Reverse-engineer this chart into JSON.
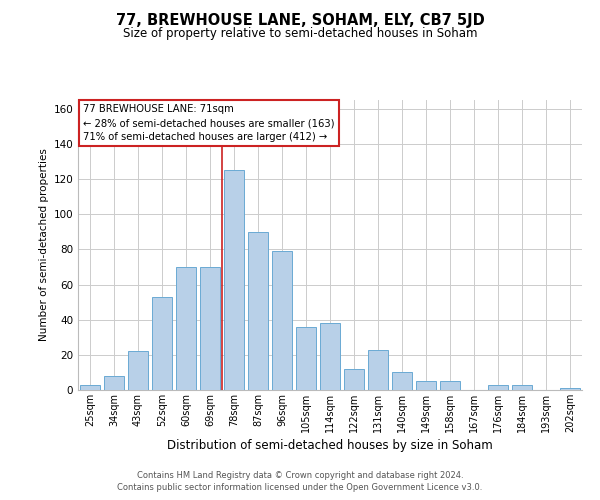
{
  "title": "77, BREWHOUSE LANE, SOHAM, ELY, CB7 5JD",
  "subtitle": "Size of property relative to semi-detached houses in Soham",
  "xlabel": "Distribution of semi-detached houses by size in Soham",
  "ylabel": "Number of semi-detached properties",
  "footer_line1": "Contains HM Land Registry data © Crown copyright and database right 2024.",
  "footer_line2": "Contains public sector information licensed under the Open Government Licence v3.0.",
  "bar_labels": [
    "25sqm",
    "34sqm",
    "43sqm",
    "52sqm",
    "60sqm",
    "69sqm",
    "78sqm",
    "87sqm",
    "96sqm",
    "105sqm",
    "114sqm",
    "122sqm",
    "131sqm",
    "140sqm",
    "149sqm",
    "158sqm",
    "167sqm",
    "176sqm",
    "184sqm",
    "193sqm",
    "202sqm"
  ],
  "bar_values": [
    3,
    8,
    22,
    53,
    70,
    70,
    125,
    90,
    79,
    36,
    38,
    12,
    23,
    10,
    5,
    5,
    0,
    3,
    3,
    0,
    1
  ],
  "bar_color": "#b8d0e8",
  "bar_edge_color": "#6aaad4",
  "property_size": 71,
  "property_label": "77 BREWHOUSE LANE: 71sqm",
  "smaller_pct": 28,
  "smaller_count": 163,
  "larger_pct": 71,
  "larger_count": 412,
  "vline_color": "#cc2222",
  "annotation_box_edge": "#cc2222",
  "ylim": [
    0,
    165
  ],
  "yticks": [
    0,
    20,
    40,
    60,
    80,
    100,
    120,
    140,
    160
  ],
  "background_color": "#ffffff",
  "grid_color": "#cccccc",
  "vline_x": 5.5
}
